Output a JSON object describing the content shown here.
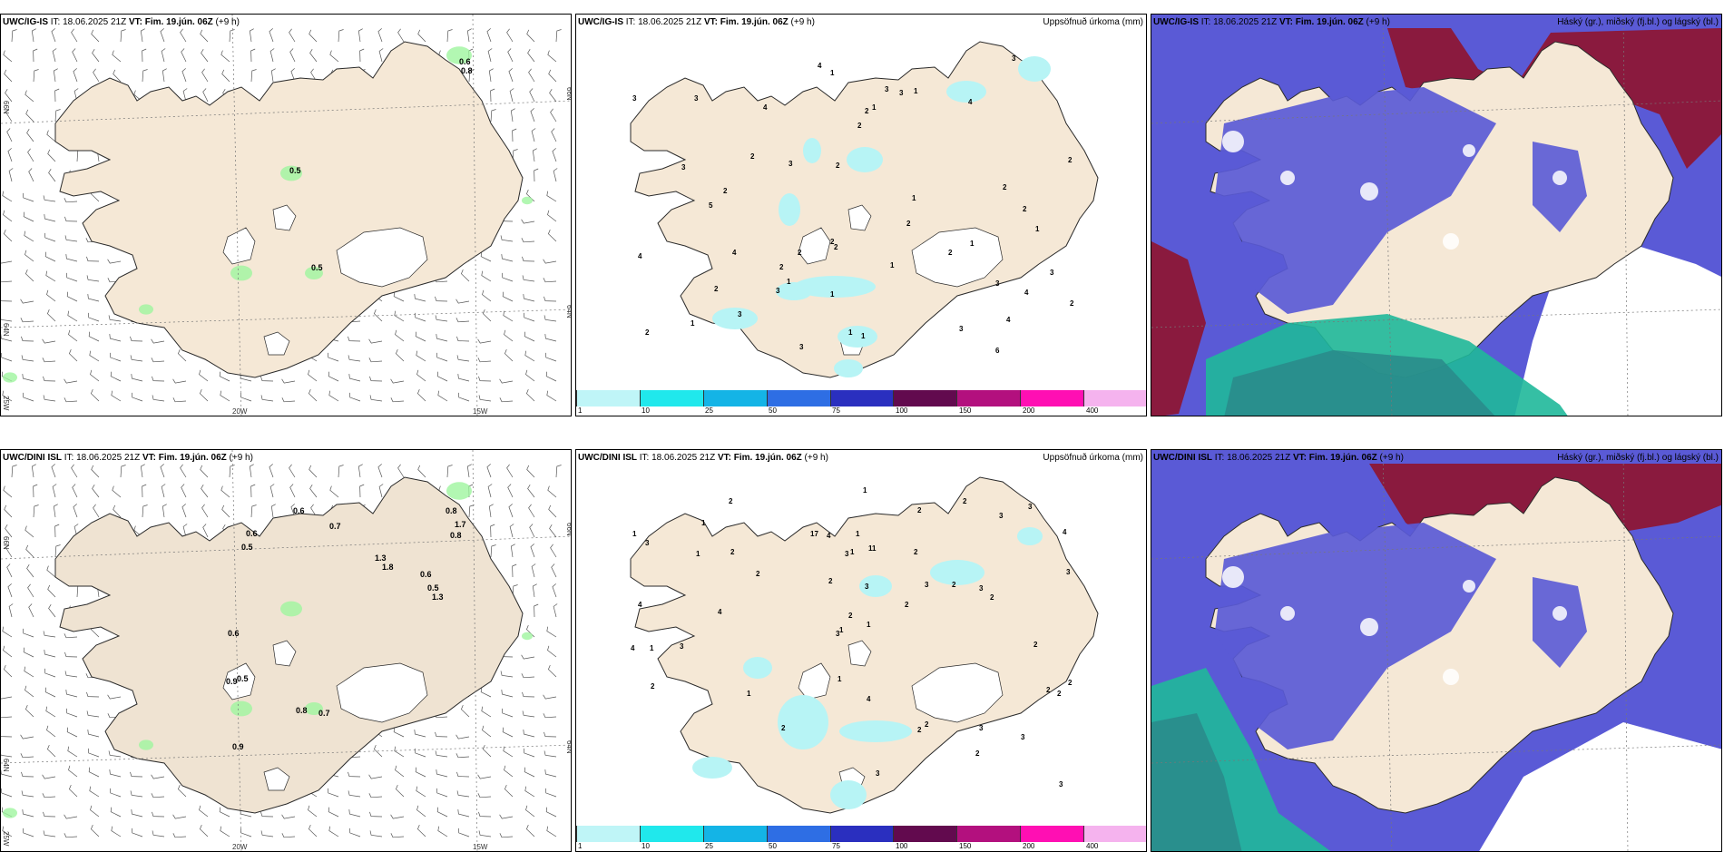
{
  "rows": [
    {
      "model": "UWC/IG-IS",
      "panels": [
        {
          "prefix": "UWC/IG-IS",
          "it": " IT: 18.06.2025 21Z ",
          "vt_label": "VT:",
          "vt": " Fim. 19.jún. 06Z",
          "lead": " (+9 h)",
          "right": ""
        },
        {
          "prefix": "UWC/IG-IS",
          "it": " IT: 18.06.2025 21Z ",
          "vt_label": "VT:",
          "vt": " Fim. 19.jún. 06Z",
          "lead": " (+9 h)",
          "right": "Uppsöfnuð úrkoma (mm)"
        },
        {
          "prefix": "UWC/IG-IS",
          "it": " IT: 18.06.2025 21Z ",
          "vt_label": "VT:",
          "vt": " Fim. 19.jún. 06Z",
          "lead": " (+9 h)",
          "right": "Háský (gr.), miðský (fj.bl.) og lágský (bl.)"
        }
      ],
      "wind_values": [
        "0.6",
        "0.8",
        "0.5",
        "0.5"
      ],
      "precip_values": [
        "2",
        "2",
        "3",
        "2",
        "1",
        "4",
        "1",
        "2",
        "2",
        "1",
        "1",
        "1",
        "1",
        "2",
        "1",
        "1",
        "2",
        "2",
        "2",
        "6",
        "4",
        "1",
        "4",
        "5",
        "1",
        "2",
        "2",
        "4",
        "4",
        "3",
        "1",
        "3",
        "1",
        "3",
        "3",
        "2",
        "4",
        "3",
        "3",
        "2",
        "3",
        "3",
        "2",
        "3",
        "2",
        "4",
        "3",
        "3",
        "2",
        "2",
        "3"
      ]
    },
    {
      "model": "UWC/DINI ISL",
      "panels": [
        {
          "prefix": "UWC/DINI ISL",
          "it": " IT: 18.06.2025 21Z ",
          "vt_label": "VT:",
          "vt": " Fim. 19.jún. 06Z",
          "lead": " (+9 h)",
          "right": ""
        },
        {
          "prefix": "UWC/DINI ISL",
          "it": " IT: 18.06.2025 21Z ",
          "vt_label": "VT:",
          "vt": " Fim. 19.jún. 06Z",
          "lead": " (+9 h)",
          "right": "Uppsöfnuð úrkoma (mm)"
        },
        {
          "prefix": "UWC/DINI ISL",
          "it": " IT: 18.06.2025 21Z ",
          "vt_label": "VT:",
          "vt": " Fim. 19.jún. 06Z",
          "lead": " (+9 h)",
          "right": "Háský (gr.), miðský (fj.bl.) og lágský (bl.)"
        }
      ],
      "wind_values": [
        "0.6",
        "0.8",
        "1.7",
        "0.8",
        "0.7",
        "0.6",
        "0.5",
        "1.3",
        "1.8",
        "0.6",
        "0.5",
        "1.3",
        "0.6",
        "0.9",
        "0.5",
        "0.8",
        "0.7",
        "0.9"
      ],
      "precip_values": [
        "1",
        "1",
        "3",
        "2",
        "2",
        "2",
        "1",
        "2",
        "2",
        "2",
        "1",
        "2",
        "3",
        "2",
        "3",
        "1",
        "3",
        "2",
        "2",
        "1",
        "1",
        "2",
        "3",
        "1",
        "2",
        "3",
        "2",
        "2",
        "3",
        "17",
        "4",
        "11",
        "4",
        "4",
        "2",
        "1",
        "3",
        "4",
        "3",
        "3",
        "3",
        "2",
        "3",
        "4",
        "2",
        "3",
        "4",
        "1",
        "2",
        "3",
        "2",
        "2",
        "1"
      ]
    }
  ],
  "axis_labels": {
    "lon_20": "20W",
    "lon_15": "15W",
    "lat_66": "66N",
    "lat_64": "64N",
    "lon_25": "25W"
  },
  "colorbar": {
    "ticks": [
      "1",
      "10",
      "25",
      "50",
      "75",
      "100",
      "150",
      "200",
      "400"
    ],
    "colors": [
      "#bff5f7",
      "#20e8ec",
      "#14b4e6",
      "#2e6ee4",
      "#2a2fbf",
      "#620a4e",
      "#b3107e",
      "#ff0fb3",
      "#f5b3ee"
    ]
  },
  "colors": {
    "land": "#f5e8d6",
    "land_dini": "#efe3d2",
    "coast": "#2a2a2a",
    "wind_green": "#9ff59f",
    "precip_cyan": "#b7f4f5",
    "cloud_low": "#5a5ad6",
    "cloud_high": "#8a1a3e",
    "cloud_mid": "#1fb89a",
    "teal_dark": "#2a8a8a"
  }
}
